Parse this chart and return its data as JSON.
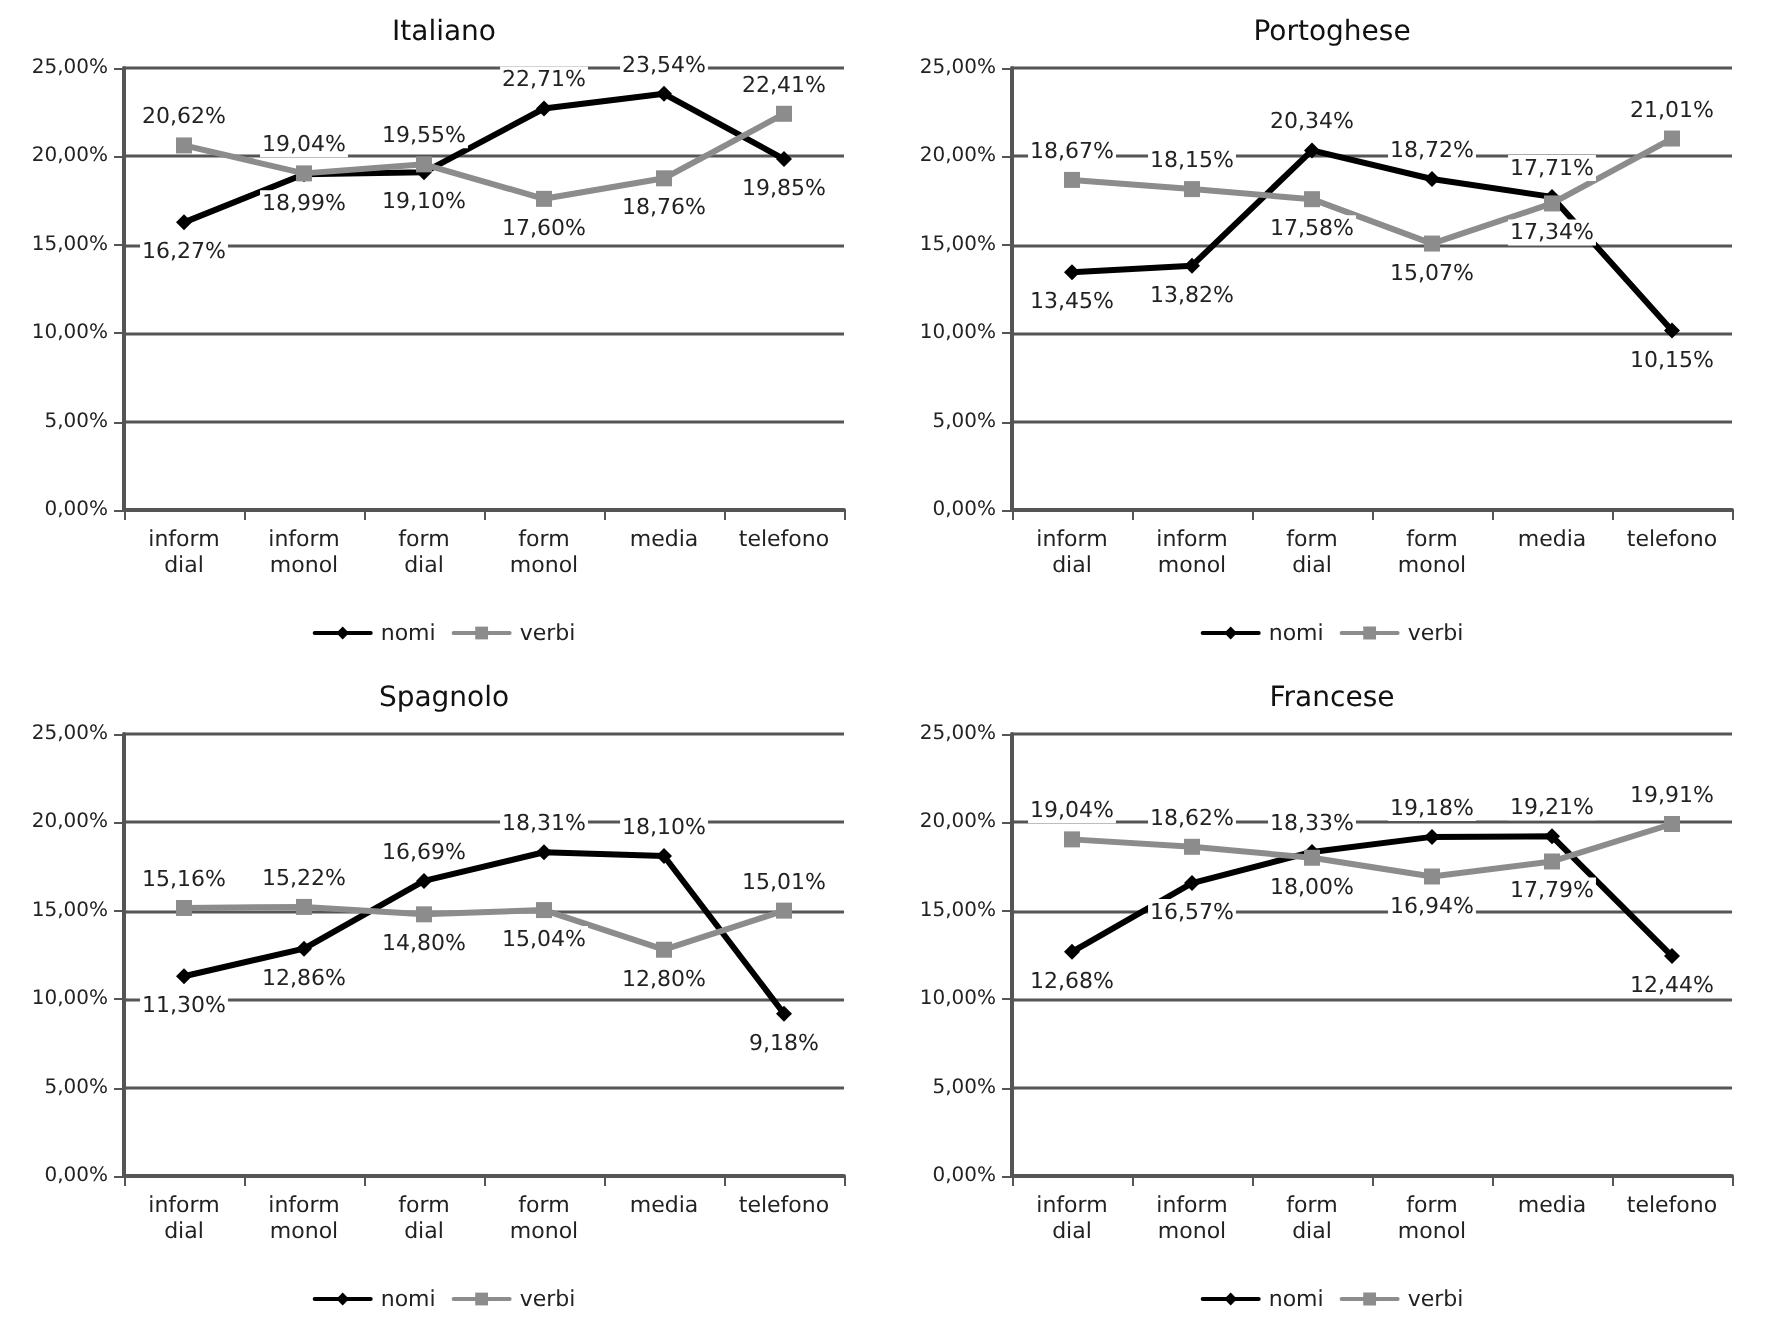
{
  "chart_data": [
    {
      "type": "line",
      "title": "Italiano",
      "categories": [
        "inform dial",
        "inform monol",
        "form dial",
        "form monol",
        "media",
        "telefono"
      ],
      "series": [
        {
          "name": "nomi",
          "color": "#000000",
          "marker": "diamond",
          "values": [
            16.27,
            18.99,
            19.1,
            22.71,
            23.54,
            19.85
          ],
          "value_labels": [
            "16,27%",
            "18,99%",
            "19,10%",
            "22,71%",
            "23,54%",
            "19,85%"
          ]
        },
        {
          "name": "verbi",
          "color": "#8c8c8c",
          "marker": "square",
          "values": [
            20.62,
            19.04,
            19.55,
            17.6,
            18.76,
            22.41
          ],
          "value_labels": [
            "20,62%",
            "19,04%",
            "19,55%",
            "17,60%",
            "18,76%",
            "22,41%"
          ]
        }
      ],
      "ylim": [
        0,
        25
      ],
      "yticks": [
        {
          "value": 0,
          "label": "0,00%"
        },
        {
          "value": 5,
          "label": "5,00%"
        },
        {
          "value": 10,
          "label": "10,00%"
        },
        {
          "value": 15,
          "label": "15,00%"
        },
        {
          "value": 20,
          "label": "20,00%"
        },
        {
          "value": 25,
          "label": "25,00%"
        }
      ],
      "grid": "y",
      "legend": "bottom"
    },
    {
      "type": "line",
      "title": "Portoghese",
      "categories": [
        "inform dial",
        "inform monol",
        "form dial",
        "form monol",
        "media",
        "telefono"
      ],
      "series": [
        {
          "name": "nomi",
          "color": "#000000",
          "marker": "diamond",
          "values": [
            13.45,
            13.82,
            20.34,
            18.72,
            17.71,
            10.15
          ],
          "value_labels": [
            "13,45%",
            "13,82%",
            "20,34%",
            "18,72%",
            "17,71%",
            "10,15%"
          ]
        },
        {
          "name": "verbi",
          "color": "#8c8c8c",
          "marker": "square",
          "values": [
            18.67,
            18.15,
            17.58,
            15.07,
            17.34,
            21.01
          ],
          "value_labels": [
            "18,67%",
            "18,15%",
            "17,58%",
            "15,07%",
            "17,34%",
            "21,01%"
          ]
        }
      ],
      "ylim": [
        0,
        25
      ],
      "yticks": [
        {
          "value": 0,
          "label": "0,00%"
        },
        {
          "value": 5,
          "label": "5,00%"
        },
        {
          "value": 10,
          "label": "10,00%"
        },
        {
          "value": 15,
          "label": "15,00%"
        },
        {
          "value": 20,
          "label": "20,00%"
        },
        {
          "value": 25,
          "label": "25,00%"
        }
      ],
      "grid": "y",
      "legend": "bottom"
    },
    {
      "type": "line",
      "title": "Spagnolo",
      "categories": [
        "inform dial",
        "inform monol",
        "form dial",
        "form monol",
        "media",
        "telefono"
      ],
      "series": [
        {
          "name": "nomi",
          "color": "#000000",
          "marker": "diamond",
          "values": [
            11.3,
            12.86,
            16.69,
            18.31,
            18.1,
            9.18
          ],
          "value_labels": [
            "11,30%",
            "12,86%",
            "16,69%",
            "18,31%",
            "18,10%",
            "9,18%"
          ]
        },
        {
          "name": "verbi",
          "color": "#8c8c8c",
          "marker": "square",
          "values": [
            15.16,
            15.22,
            14.8,
            15.04,
            12.8,
            15.01
          ],
          "value_labels": [
            "15,16%",
            "15,22%",
            "14,80%",
            "15,04%",
            "12,80%",
            "15,01%"
          ]
        }
      ],
      "ylim": [
        0,
        25
      ],
      "yticks": [
        {
          "value": 0,
          "label": "0,00%"
        },
        {
          "value": 5,
          "label": "5,00%"
        },
        {
          "value": 10,
          "label": "10,00%"
        },
        {
          "value": 15,
          "label": "15,00%"
        },
        {
          "value": 20,
          "label": "20,00%"
        },
        {
          "value": 25,
          "label": "25,00%"
        }
      ],
      "grid": "y",
      "legend": "bottom"
    },
    {
      "type": "line",
      "title": "Francese",
      "categories": [
        "inform dial",
        "inform monol",
        "form dial",
        "form monol",
        "media",
        "telefono"
      ],
      "series": [
        {
          "name": "nomi",
          "color": "#000000",
          "marker": "diamond",
          "values": [
            12.68,
            16.57,
            18.33,
            19.18,
            19.21,
            12.44
          ],
          "value_labels": [
            "12,68%",
            "16,57%",
            "18,33%",
            "19,18%",
            "19,21%",
            "12,44%"
          ]
        },
        {
          "name": "verbi",
          "color": "#8c8c8c",
          "marker": "square",
          "values": [
            19.04,
            18.62,
            18.0,
            16.94,
            17.79,
            19.91
          ],
          "value_labels": [
            "19,04%",
            "18,62%",
            "18,00%",
            "16,94%",
            "17,79%",
            "19,91%"
          ]
        }
      ],
      "ylim": [
        0,
        25
      ],
      "yticks": [
        {
          "value": 0,
          "label": "0,00%"
        },
        {
          "value": 5,
          "label": "5,00%"
        },
        {
          "value": 10,
          "label": "10,00%"
        },
        {
          "value": 15,
          "label": "15,00%"
        },
        {
          "value": 20,
          "label": "20,00%"
        },
        {
          "value": 25,
          "label": "25,00%"
        }
      ],
      "grid": "y",
      "legend": "bottom"
    }
  ]
}
